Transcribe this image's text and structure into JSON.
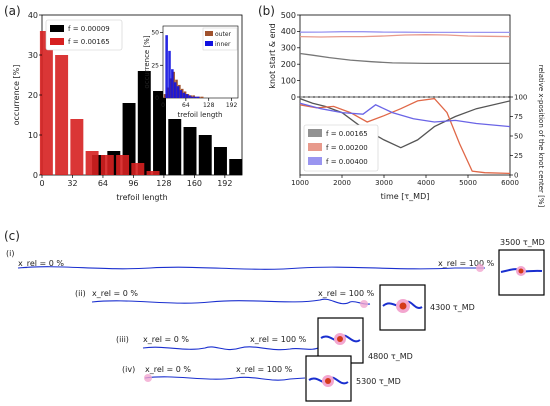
{
  "panel_labels": {
    "a": "(a)",
    "b": "(b)",
    "c": "(c)"
  },
  "chart_data": [
    {
      "id": "a-main",
      "type": "bar",
      "xlabel": "trefoil length",
      "ylabel": "occurrence [%]",
      "xlim": [
        0,
        210
      ],
      "ylim": [
        0,
        40
      ],
      "xticks": [
        0,
        32,
        64,
        96,
        128,
        160,
        192
      ],
      "yticks": [
        0,
        10,
        20,
        30,
        40
      ],
      "bin_width": 16,
      "bin_centers": [
        8,
        24,
        40,
        56,
        72,
        88,
        104,
        120,
        136,
        152,
        168,
        184,
        200
      ],
      "series": [
        {
          "name": "f = 0.00009",
          "color": "#000000",
          "values": [
            0,
            0,
            0,
            5,
            6,
            18,
            26,
            21,
            14,
            12,
            10,
            7,
            4
          ]
        },
        {
          "name": "f = 0.00165",
          "color": "#d62020",
          "values": [
            36,
            30,
            14,
            6,
            5,
            5,
            3,
            1,
            0,
            0,
            0,
            0,
            0
          ]
        }
      ],
      "legend": [
        "f = 0.00009",
        "f = 0.00165"
      ],
      "legend_loc": "upper-left"
    },
    {
      "id": "a-inset",
      "type": "bar",
      "xlabel": "trefoil length",
      "ylabel": "occurrence [%]",
      "xlim": [
        0,
        210
      ],
      "ylim": [
        0,
        55
      ],
      "xticks": [
        0,
        64,
        128,
        192
      ],
      "yticks": [
        0,
        25,
        50
      ],
      "bin_width": 8,
      "bin_centers": [
        4,
        12,
        20,
        28,
        36,
        44,
        52,
        60,
        68,
        76,
        84,
        92,
        100,
        108,
        116,
        124
      ],
      "series": [
        {
          "name": "outer",
          "color": "#a0522d",
          "values": [
            3,
            8,
            15,
            20,
            14,
            10,
            7,
            5,
            3,
            2,
            2,
            1,
            1,
            1,
            0,
            0
          ]
        },
        {
          "name": "inner",
          "color": "#1010e0",
          "values": [
            0,
            48,
            36,
            22,
            12,
            9,
            6,
            4,
            3,
            2,
            1,
            1,
            1,
            0,
            0,
            0
          ]
        }
      ],
      "legend": [
        "outer",
        "inner"
      ],
      "legend_loc": "upper-right"
    },
    {
      "id": "b-top",
      "type": "line",
      "ylabel": "knot start & end",
      "xlim": [
        1000,
        6000
      ],
      "ylim": [
        0,
        500
      ],
      "yticks": [
        0,
        100,
        200,
        300,
        400,
        500
      ],
      "series": [
        {
          "name": "f = 0.00165",
          "color": "#777777",
          "points": [
            [
              1000,
              265
            ],
            [
              1300,
              255
            ],
            [
              1700,
              240
            ],
            [
              2200,
              225
            ],
            [
              2700,
              215
            ],
            [
              3200,
              208
            ],
            [
              4000,
              205
            ],
            [
              5000,
              205
            ],
            [
              6000,
              205
            ]
          ]
        },
        {
          "name": "f = 0.00200",
          "color": "#e89a8c",
          "points": [
            [
              1000,
              368
            ],
            [
              1500,
              366
            ],
            [
              2000,
              368
            ],
            [
              2500,
              368
            ],
            [
              3000,
              372
            ],
            [
              3500,
              378
            ],
            [
              4000,
              380
            ],
            [
              4500,
              378
            ],
            [
              5000,
              372
            ],
            [
              5500,
              370
            ],
            [
              6000,
              368
            ]
          ]
        },
        {
          "name": "f = 0.00400",
          "color": "#9a95f0",
          "points": [
            [
              1000,
              395
            ],
            [
              1500,
              396
            ],
            [
              2000,
              398
            ],
            [
              2500,
              398
            ],
            [
              3000,
              396
            ],
            [
              3500,
              395
            ],
            [
              4000,
              394
            ],
            [
              4500,
              394
            ],
            [
              5000,
              394
            ],
            [
              5500,
              394
            ],
            [
              6000,
              394
            ]
          ]
        }
      ]
    },
    {
      "id": "b-bottom",
      "type": "line",
      "xlabel": "time [τ_MD]",
      "ylabel": "relative x-position of the knot center [%]",
      "xlim": [
        1000,
        6000
      ],
      "ylim": [
        0,
        100
      ],
      "xticks": [
        1000,
        2000,
        3000,
        4000,
        5000,
        6000
      ],
      "yticks": [
        0,
        25,
        50,
        75,
        100
      ],
      "series": [
        {
          "name": "f = 0.00165",
          "color": "#555555",
          "points": [
            [
              1000,
              98
            ],
            [
              1300,
              92
            ],
            [
              1600,
              88
            ],
            [
              2000,
              80
            ],
            [
              2500,
              60
            ],
            [
              3000,
              45
            ],
            [
              3400,
              35
            ],
            [
              3800,
              45
            ],
            [
              4200,
              62
            ],
            [
              4700,
              75
            ],
            [
              5200,
              85
            ],
            [
              6000,
              95
            ]
          ]
        },
        {
          "name": "f = 0.00200",
          "color": "#e06848",
          "points": [
            [
              1000,
              90
            ],
            [
              1400,
              86
            ],
            [
              1800,
              88
            ],
            [
              2200,
              80
            ],
            [
              2600,
              68
            ],
            [
              3000,
              76
            ],
            [
              3400,
              85
            ],
            [
              3800,
              95
            ],
            [
              4200,
              98
            ],
            [
              4500,
              80
            ],
            [
              4800,
              40
            ],
            [
              5100,
              5
            ],
            [
              5400,
              3
            ],
            [
              6000,
              2
            ]
          ]
        },
        {
          "name": "f = 0.00400",
          "color": "#6a64e6",
          "points": [
            [
              1000,
              92
            ],
            [
              1500,
              85
            ],
            [
              2000,
              80
            ],
            [
              2500,
              78
            ],
            [
              2800,
              90
            ],
            [
              3200,
              80
            ],
            [
              3700,
              72
            ],
            [
              4200,
              68
            ],
            [
              4700,
              70
            ],
            [
              5200,
              66
            ],
            [
              6000,
              62
            ]
          ]
        }
      ],
      "legend": [
        "f = 0.00165",
        "f = 0.00200",
        "f = 0.00400"
      ],
      "legend_loc": "lower-left"
    }
  ],
  "panel_c": {
    "rows": [
      {
        "label": "(i)",
        "start": "x_rel = 0 %",
        "end": "x_rel = 100 %",
        "time": "3500 τ_MD"
      },
      {
        "label": "(ii)",
        "start": "x_rel = 0 %",
        "end": "x_rel = 100 %",
        "time": "4300 τ_MD"
      },
      {
        "label": "(iii)",
        "start": "x_rel = 0 %",
        "end": "x_rel = 100 %",
        "time": "4800 τ_MD"
      },
      {
        "label": "(iv)",
        "start": "x_rel = 0 %",
        "end": "x_rel = 100 %",
        "time": "5300 τ_MD"
      }
    ]
  },
  "colors": {
    "chain": "#1a2fcf",
    "knot": "#d43a1a",
    "highlight": "#f3a6cf"
  }
}
